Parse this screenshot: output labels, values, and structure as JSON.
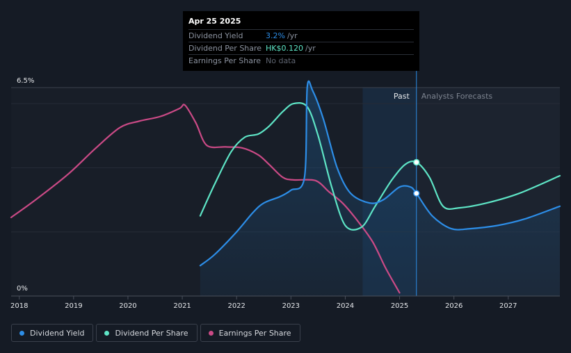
{
  "tooltip": {
    "date": "Apr 25 2025",
    "rows": [
      {
        "label": "Dividend Yield",
        "value": "3.2%",
        "unit": "/yr",
        "color": "#2d8ee8"
      },
      {
        "label": "Dividend Per Share",
        "value": "HK$0.120",
        "unit": "/yr",
        "color": "#5ee5c6"
      },
      {
        "label": "Earnings Per Share",
        "value": "No data",
        "unit": "",
        "color": "#5e6470"
      }
    ]
  },
  "legend": [
    {
      "label": "Dividend Yield",
      "color": "#2d8ee8"
    },
    {
      "label": "Dividend Per Share",
      "color": "#5ee5c6"
    },
    {
      "label": "Earnings Per Share",
      "color": "#cb4a86"
    }
  ],
  "chart_data": {
    "type": "line",
    "y_top_label": "6.5%",
    "y_bottom_label": "0%",
    "past_label": "Past",
    "forecast_label": "Analysts Forecasts",
    "xlim": [
      2017.85,
      2027.95
    ],
    "ylim": [
      0,
      6.5
    ],
    "forecast_start": 2025.31,
    "past_shade_start": 2024.32,
    "x_ticks": [
      "2018",
      "2019",
      "2020",
      "2021",
      "2022",
      "2023",
      "2024",
      "2025",
      "2026",
      "2027"
    ],
    "series": [
      {
        "name": "Dividend Yield",
        "unit": "%",
        "color": "#2d8ee8",
        "points": [
          [
            2021.33,
            0.95
          ],
          [
            2021.6,
            1.3
          ],
          [
            2022.0,
            2.0
          ],
          [
            2022.3,
            2.6
          ],
          [
            2022.5,
            2.9
          ],
          [
            2022.8,
            3.1
          ],
          [
            2023.0,
            3.3
          ],
          [
            2023.25,
            3.7
          ],
          [
            2023.3,
            6.5
          ],
          [
            2023.4,
            6.4
          ],
          [
            2023.6,
            5.5
          ],
          [
            2023.85,
            4.0
          ],
          [
            2024.1,
            3.2
          ],
          [
            2024.45,
            2.9
          ],
          [
            2024.7,
            3.0
          ],
          [
            2025.0,
            3.4
          ],
          [
            2025.2,
            3.4
          ],
          [
            2025.31,
            3.2
          ],
          [
            2025.6,
            2.5
          ],
          [
            2025.95,
            2.1
          ],
          [
            2026.3,
            2.1
          ],
          [
            2026.8,
            2.2
          ],
          [
            2027.3,
            2.4
          ],
          [
            2027.95,
            2.8
          ]
        ]
      },
      {
        "name": "Dividend Per Share",
        "unit": "HK$",
        "color": "#5ee5c6",
        "points": [
          [
            2021.33,
            2.5
          ],
          [
            2021.6,
            3.5
          ],
          [
            2021.9,
            4.5
          ],
          [
            2022.15,
            4.95
          ],
          [
            2022.4,
            5.05
          ],
          [
            2022.6,
            5.3
          ],
          [
            2022.85,
            5.75
          ],
          [
            2023.05,
            6.0
          ],
          [
            2023.3,
            5.9
          ],
          [
            2023.5,
            5.0
          ],
          [
            2023.75,
            3.4
          ],
          [
            2024.0,
            2.2
          ],
          [
            2024.3,
            2.15
          ],
          [
            2024.55,
            2.8
          ],
          [
            2024.85,
            3.6
          ],
          [
            2025.1,
            4.1
          ],
          [
            2025.31,
            4.17
          ],
          [
            2025.55,
            3.7
          ],
          [
            2025.8,
            2.8
          ],
          [
            2026.1,
            2.75
          ],
          [
            2026.6,
            2.9
          ],
          [
            2027.2,
            3.2
          ],
          [
            2027.95,
            3.75
          ]
        ]
      },
      {
        "name": "Earnings Per Share",
        "unit": "HK$",
        "color": "#cb4a86",
        "points": [
          [
            2017.85,
            2.45
          ],
          [
            2018.3,
            3.0
          ],
          [
            2018.9,
            3.8
          ],
          [
            2019.4,
            4.6
          ],
          [
            2019.85,
            5.25
          ],
          [
            2020.2,
            5.45
          ],
          [
            2020.6,
            5.6
          ],
          [
            2020.95,
            5.85
          ],
          [
            2021.05,
            5.95
          ],
          [
            2021.25,
            5.4
          ],
          [
            2021.45,
            4.7
          ],
          [
            2021.8,
            4.65
          ],
          [
            2022.1,
            4.62
          ],
          [
            2022.4,
            4.4
          ],
          [
            2022.6,
            4.1
          ],
          [
            2022.85,
            3.7
          ],
          [
            2023.05,
            3.62
          ],
          [
            2023.45,
            3.6
          ],
          [
            2023.7,
            3.25
          ],
          [
            2023.95,
            2.9
          ],
          [
            2024.2,
            2.4
          ],
          [
            2024.5,
            1.7
          ],
          [
            2024.75,
            0.85
          ],
          [
            2025.0,
            0.1
          ]
        ]
      }
    ]
  }
}
